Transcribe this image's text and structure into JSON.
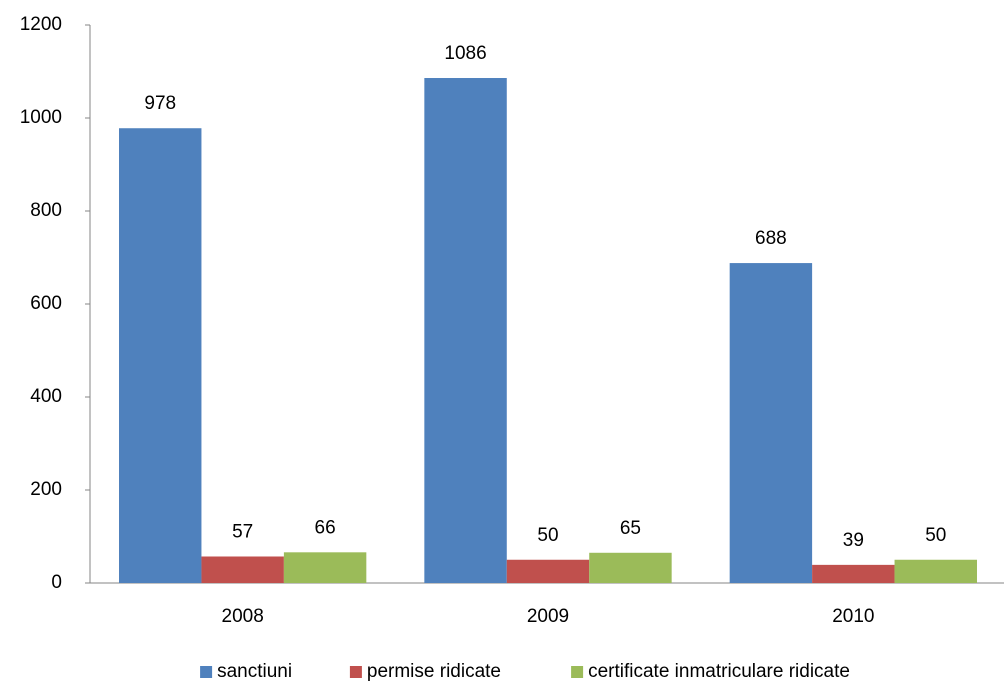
{
  "chart_data": {
    "type": "bar",
    "categories": [
      "2008",
      "2009",
      "2010"
    ],
    "series": [
      {
        "name": "sanctiuni",
        "color": "#4f81bd",
        "values": [
          978,
          1086,
          688
        ]
      },
      {
        "name": "permise ridicate",
        "color": "#c0504d",
        "values": [
          57,
          50,
          39
        ]
      },
      {
        "name": "certificate inmatriculare ridicate",
        "color": "#9bbb59",
        "values": [
          66,
          65,
          50
        ]
      }
    ],
    "ylim": [
      0,
      1200
    ],
    "yticks": [
      0,
      200,
      400,
      600,
      800,
      1000,
      1200
    ],
    "grid": false,
    "legend": "bottom"
  }
}
